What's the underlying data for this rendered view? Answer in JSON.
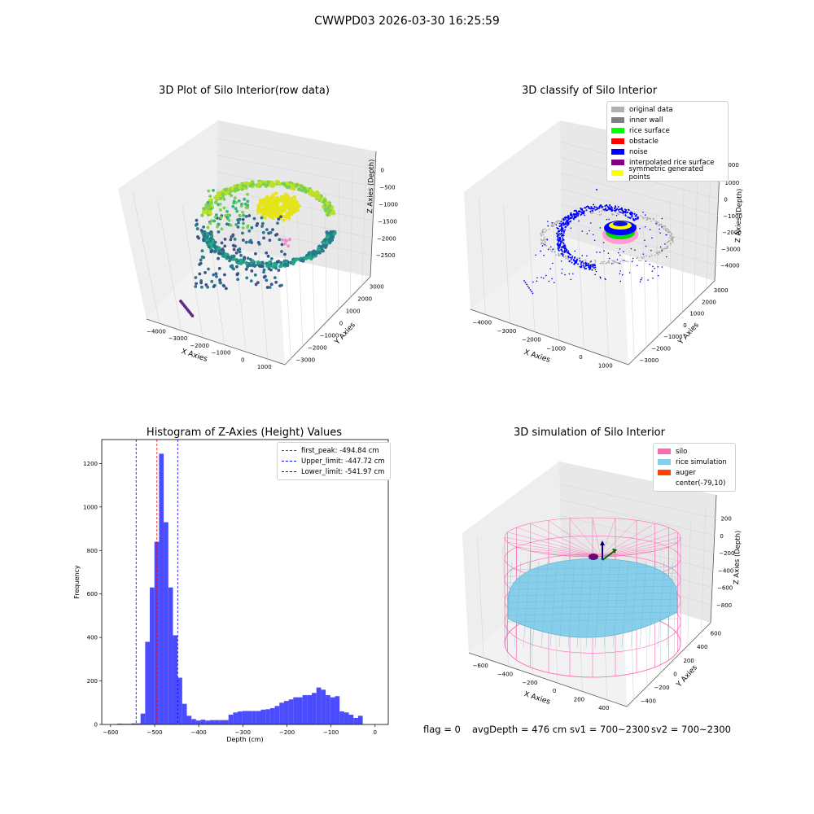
{
  "suptitle": "CWWPD03 2026-03-30 16:25:59",
  "footer": {
    "flag": "flag = 0",
    "avg": "avgDepth = 476 cm",
    "sv1": "sv1 = 700~2300",
    "sv2": "sv2 = 700~2300"
  },
  "panel1": {
    "title": "3D Plot of Silo Interior(row data)",
    "xlabel": "X Axies",
    "ylabel": "Y Axies",
    "zlabel": "Z Axies (Depth)",
    "xticks": [
      "−4000",
      "−3000",
      "−2000",
      "−1000",
      "0",
      "1000"
    ],
    "yticks": [
      "−3000",
      "−2000",
      "−1000",
      "0",
      "1000",
      "2000",
      "3000"
    ],
    "zticks": [
      "0",
      "−500",
      "−1000",
      "−1500",
      "−2000",
      "−2500"
    ]
  },
  "panel2": {
    "title": "3D classify of Silo Interior",
    "xlabel": "X Axies",
    "ylabel": "Y Axies",
    "zlabel": "Z Axies (Depth)",
    "xticks": [
      "−4000",
      "−3000",
      "−2000",
      "−1000",
      "0",
      "1000"
    ],
    "yticks": [
      "−3000",
      "−2000",
      "−1000",
      "0",
      "1000",
      "2000",
      "3000"
    ],
    "zticks": [
      "1000",
      "0",
      "−1000",
      "−2000",
      "−3000",
      "−4000"
    ],
    "ztick_top": "2000",
    "legend": [
      {
        "label": "original data",
        "color": "#b0b0b0"
      },
      {
        "label": "inner wall",
        "color": "#808080"
      },
      {
        "label": "rice surface",
        "color": "#00ff00"
      },
      {
        "label": "obstacle",
        "color": "#ff0000"
      },
      {
        "label": "noise",
        "color": "#0000ff"
      },
      {
        "label": "interpolated rice surface",
        "color": "#800080"
      },
      {
        "label": "symmetric generated points",
        "color": "#ffff00"
      }
    ]
  },
  "panel3": {
    "title": "Histogram of Z-Axies (Height) Values",
    "legend": [
      {
        "label": "first_peak: -494.84 cm",
        "color": "#ff0000"
      },
      {
        "label": "Upper_limit: -447.72 cm",
        "color": "#0000ff"
      },
      {
        "label": "Lower_limit: -541.97 cm",
        "color": "#0000ff"
      }
    ]
  },
  "panel4": {
    "title": "3D simulation of Silo Interior",
    "xlabel": "X Axies",
    "ylabel": "Y Axies",
    "zlabel": "Z Axies (Depth)",
    "xticks": [
      "−600",
      "−400",
      "−200",
      "0",
      "200",
      "400"
    ],
    "yticks": [
      "−400",
      "−200",
      "0",
      "200",
      "400",
      "600"
    ],
    "zticks": [
      "200",
      "0",
      "−200",
      "−400",
      "−600",
      "−800"
    ],
    "legend": [
      {
        "label": "silo",
        "color": "#ff69b4"
      },
      {
        "label": "rice simulation",
        "color": "#87ceeb"
      },
      {
        "label": "auger",
        "color": "#ff4500"
      },
      {
        "label": "center(-79,10)",
        "color": ""
      }
    ]
  },
  "chart_data": [
    {
      "type": "scatter",
      "title": "3D Plot of Silo Interior(row data)",
      "xlabel": "X Axies",
      "ylabel": "Y Axies",
      "zlabel": "Z Axies (Depth)"
    },
    {
      "type": "scatter",
      "title": "3D classify of Silo Interior",
      "xlabel": "X Axies",
      "ylabel": "Y Axies",
      "zlabel": "Z Axies (Depth)"
    },
    {
      "type": "bar",
      "title": "Histogram of Z-Axies (Height) Values",
      "xlabel": "Depth (cm)",
      "ylabel": "Frequency",
      "xlim": [
        -620,
        30
      ],
      "ylim": [
        0,
        1310
      ],
      "xticks": [
        -600,
        -500,
        -400,
        -300,
        -200,
        -100,
        0
      ],
      "yticks": [
        0,
        200,
        400,
        600,
        800,
        1000,
        1200
      ],
      "bin_width": 10.5,
      "bins_start": -595,
      "values": [
        2,
        4,
        3,
        3,
        5,
        5,
        50,
        380,
        630,
        840,
        1245,
        930,
        630,
        410,
        215,
        95,
        40,
        25,
        18,
        22,
        18,
        20,
        20,
        20,
        20,
        45,
        55,
        60,
        62,
        62,
        62,
        62,
        68,
        70,
        75,
        85,
        100,
        108,
        115,
        125,
        125,
        135,
        135,
        145,
        170,
        160,
        135,
        125,
        130,
        60,
        55,
        45,
        30,
        40
      ],
      "first_peak": -494.84,
      "upper_limit": -447.72,
      "lower_limit": -541.97
    },
    {
      "type": "scatter",
      "title": "3D simulation of Silo Interior",
      "xlabel": "X Axies",
      "ylabel": "Y Axies",
      "zlabel": "Z Axies (Depth)"
    }
  ]
}
